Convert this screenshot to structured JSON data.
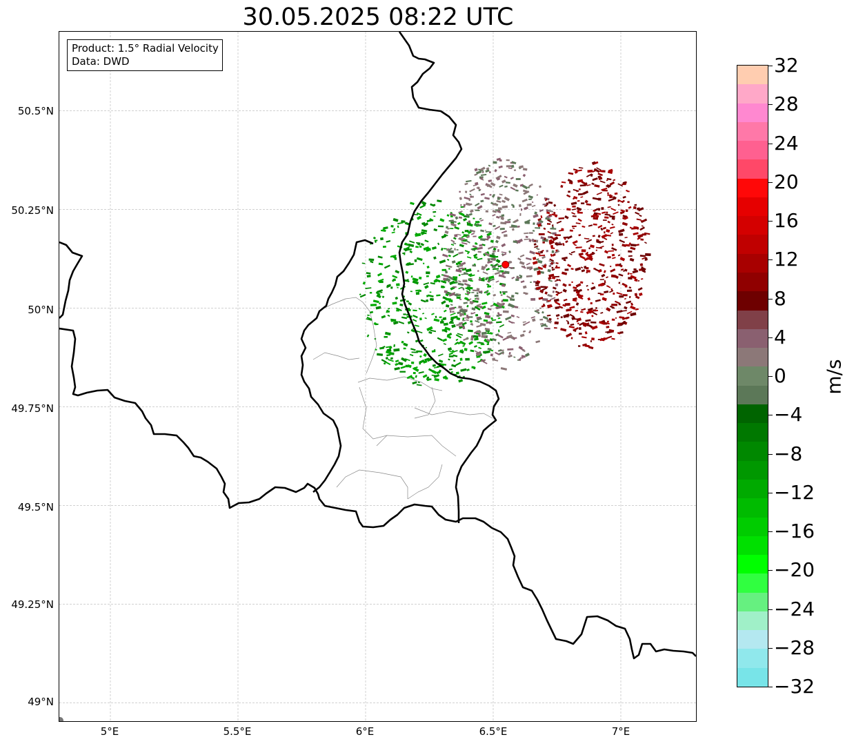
{
  "title": "30.05.2025 08:22 UTC",
  "infobox": {
    "product": "Product: 1.5° Radial Velocity",
    "data": "Data: DWD"
  },
  "axes": {
    "lat_labels": [
      "50.5°N",
      "50.25°N",
      "50°N",
      "49.75°N",
      "49.5°N",
      "49.25°N",
      "49°N"
    ],
    "lon_labels": [
      "5°E",
      "5.5°E",
      "6°E",
      "6.5°E",
      "7°E"
    ]
  },
  "colorbar": {
    "unit": "m/s",
    "tick_labels": [
      "32",
      "28",
      "24",
      "20",
      "16",
      "12",
      "8",
      "4",
      "0",
      "−4",
      "−8",
      "−12",
      "−16",
      "−20",
      "−24",
      "−28",
      "−32"
    ],
    "colors_top_to_bottom": [
      "#ffcdb0",
      "#ffa8c8",
      "#ff88d0",
      "#ff78a8",
      "#ff6090",
      "#ff4868",
      "#ff0808",
      "#e60000",
      "#d40000",
      "#c00000",
      "#a80000",
      "#900000",
      "#6e0000",
      "#804048",
      "#8a6070",
      "#8c7878",
      "#6e8868",
      "#5c7858",
      "#006400",
      "#007800",
      "#008800",
      "#009800",
      "#00aa00",
      "#00bb00",
      "#00cc00",
      "#00e000",
      "#00ff00",
      "#30ff40",
      "#66f080",
      "#a0f0c8",
      "#b4e8f0",
      "#90e8ec",
      "#78e4e8"
    ]
  },
  "map": {
    "extent": {
      "lon_min": 4.8,
      "lon_max": 7.3,
      "lat_min": 48.95,
      "lat_max": 50.7
    },
    "radar_site": {
      "lon": 6.548,
      "lat": 50.11,
      "color": "#ff0000"
    },
    "colors": {
      "border": "#000000",
      "admin": "#888888",
      "grid": "#b4b4b4"
    }
  },
  "chart_data": {
    "type": "heatmap",
    "title": "30.05.2025 08:22 UTC",
    "xlabel": "",
    "ylabel": "",
    "x_ticks": [
      5.0,
      5.5,
      6.0,
      6.5,
      7.0
    ],
    "y_ticks": [
      49.0,
      49.25,
      49.5,
      49.75,
      50.0,
      50.25,
      50.5
    ],
    "xlim": [
      4.8,
      7.3
    ],
    "ylim": [
      48.95,
      50.7
    ],
    "colorbar_range": [
      -32,
      32
    ],
    "colorbar_label": "m/s",
    "grid": true,
    "series": [
      {
        "values": [
          -12,
          -10,
          -8
        ],
        "lon_range": [
          5.97,
          6.55
        ],
        "lat_range": [
          49.8,
          50.28
        ]
      },
      {
        "values": [
          -2,
          2,
          4
        ],
        "lon_range": [
          6.3,
          6.75
        ],
        "lat_range": [
          49.85,
          50.38
        ]
      },
      {
        "values": [
          8,
          10,
          12
        ],
        "lon_range": [
          6.65,
          7.1
        ],
        "lat_range": [
          49.9,
          50.37
        ]
      }
    ]
  }
}
